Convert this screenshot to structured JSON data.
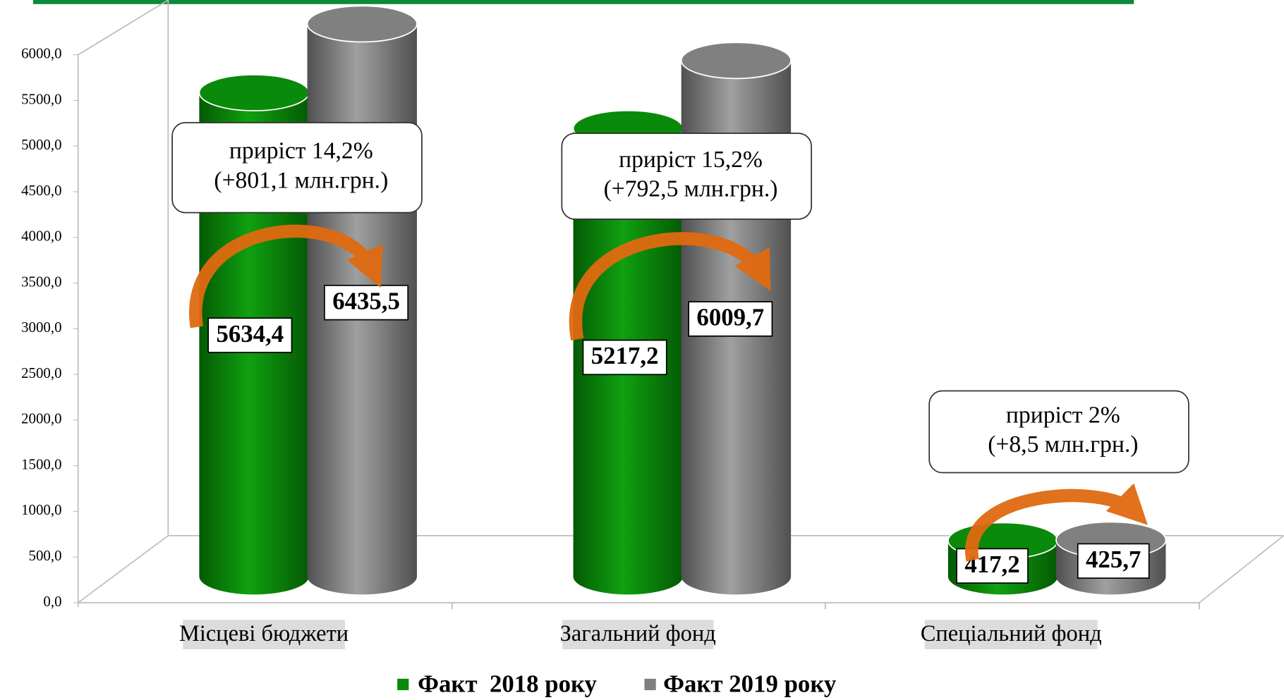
{
  "chart_data": {
    "type": "bar3d",
    "categories": [
      "Місцеві бюджети",
      "Загальний фонд",
      "Спеціальний фонд"
    ],
    "series": [
      {
        "name": "Факт  2018 року",
        "color": "#0a8a0a",
        "values": [
          5634.4,
          5217.2,
          417.2
        ],
        "value_labels": [
          "5634,4",
          "5217,2",
          "417,2"
        ]
      },
      {
        "name": "Факт 2019 року",
        "color": "#808080",
        "values": [
          6435.5,
          6009.7,
          425.7
        ],
        "value_labels": [
          "6435,5",
          "6009,7",
          "425,7"
        ]
      }
    ],
    "ylim": [
      0,
      6000
    ],
    "yticks": [
      {
        "value": 0,
        "label": "0,0"
      },
      {
        "value": 500,
        "label": "500,0"
      },
      {
        "value": 1000,
        "label": "1000,0"
      },
      {
        "value": 1500,
        "label": "1500,0"
      },
      {
        "value": 2000,
        "label": "2000,0"
      },
      {
        "value": 2500,
        "label": "2500,0"
      },
      {
        "value": 3000,
        "label": "3000,0"
      },
      {
        "value": 3500,
        "label": "3500,0"
      },
      {
        "value": 4000,
        "label": "4000,0"
      },
      {
        "value": 4500,
        "label": "4500,0"
      },
      {
        "value": 5000,
        "label": "5000,0"
      },
      {
        "value": 5500,
        "label": "5500,0"
      },
      {
        "value": 6000,
        "label": "6000,0"
      }
    ],
    "annotations": [
      [
        "приріст 14,2%",
        "(+801,1 млн.грн.)"
      ],
      [
        "приріст 15,2%",
        "(+792,5 млн.грн.)"
      ],
      [
        "приріст 2%",
        "(+8,5 млн.грн.)"
      ]
    ]
  }
}
